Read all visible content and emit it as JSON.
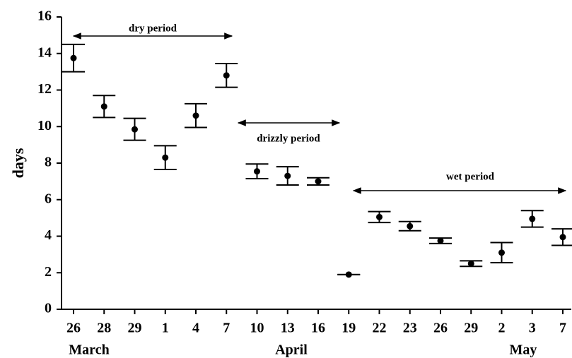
{
  "chart_data": {
    "type": "errorbar",
    "y_label": "days",
    "categories": [
      "26",
      "28",
      "29",
      "1",
      "4",
      "7",
      "10",
      "13",
      "16",
      "19",
      "22",
      "23",
      "26",
      "29",
      "2",
      "3",
      "7"
    ],
    "month_labels": [
      "March",
      "April",
      "May"
    ],
    "values": [
      13.75,
      11.1,
      9.85,
      8.3,
      10.6,
      12.8,
      7.55,
      7.3,
      7.0,
      1.9,
      5.05,
      4.55,
      3.75,
      2.5,
      3.1,
      4.95,
      3.95
    ],
    "errors": [
      0.75,
      0.6,
      0.6,
      0.65,
      0.65,
      0.65,
      0.4,
      0.5,
      0.2,
      0.0,
      0.3,
      0.25,
      0.15,
      0.15,
      0.55,
      0.45,
      0.45
    ],
    "color": "#000000",
    "ylim": [
      0,
      16
    ],
    "yticks": [
      0,
      2,
      4,
      6,
      8,
      10,
      12,
      14,
      16
    ],
    "annotations": [
      "dry period",
      "drizzly period",
      "wet period"
    ]
  }
}
